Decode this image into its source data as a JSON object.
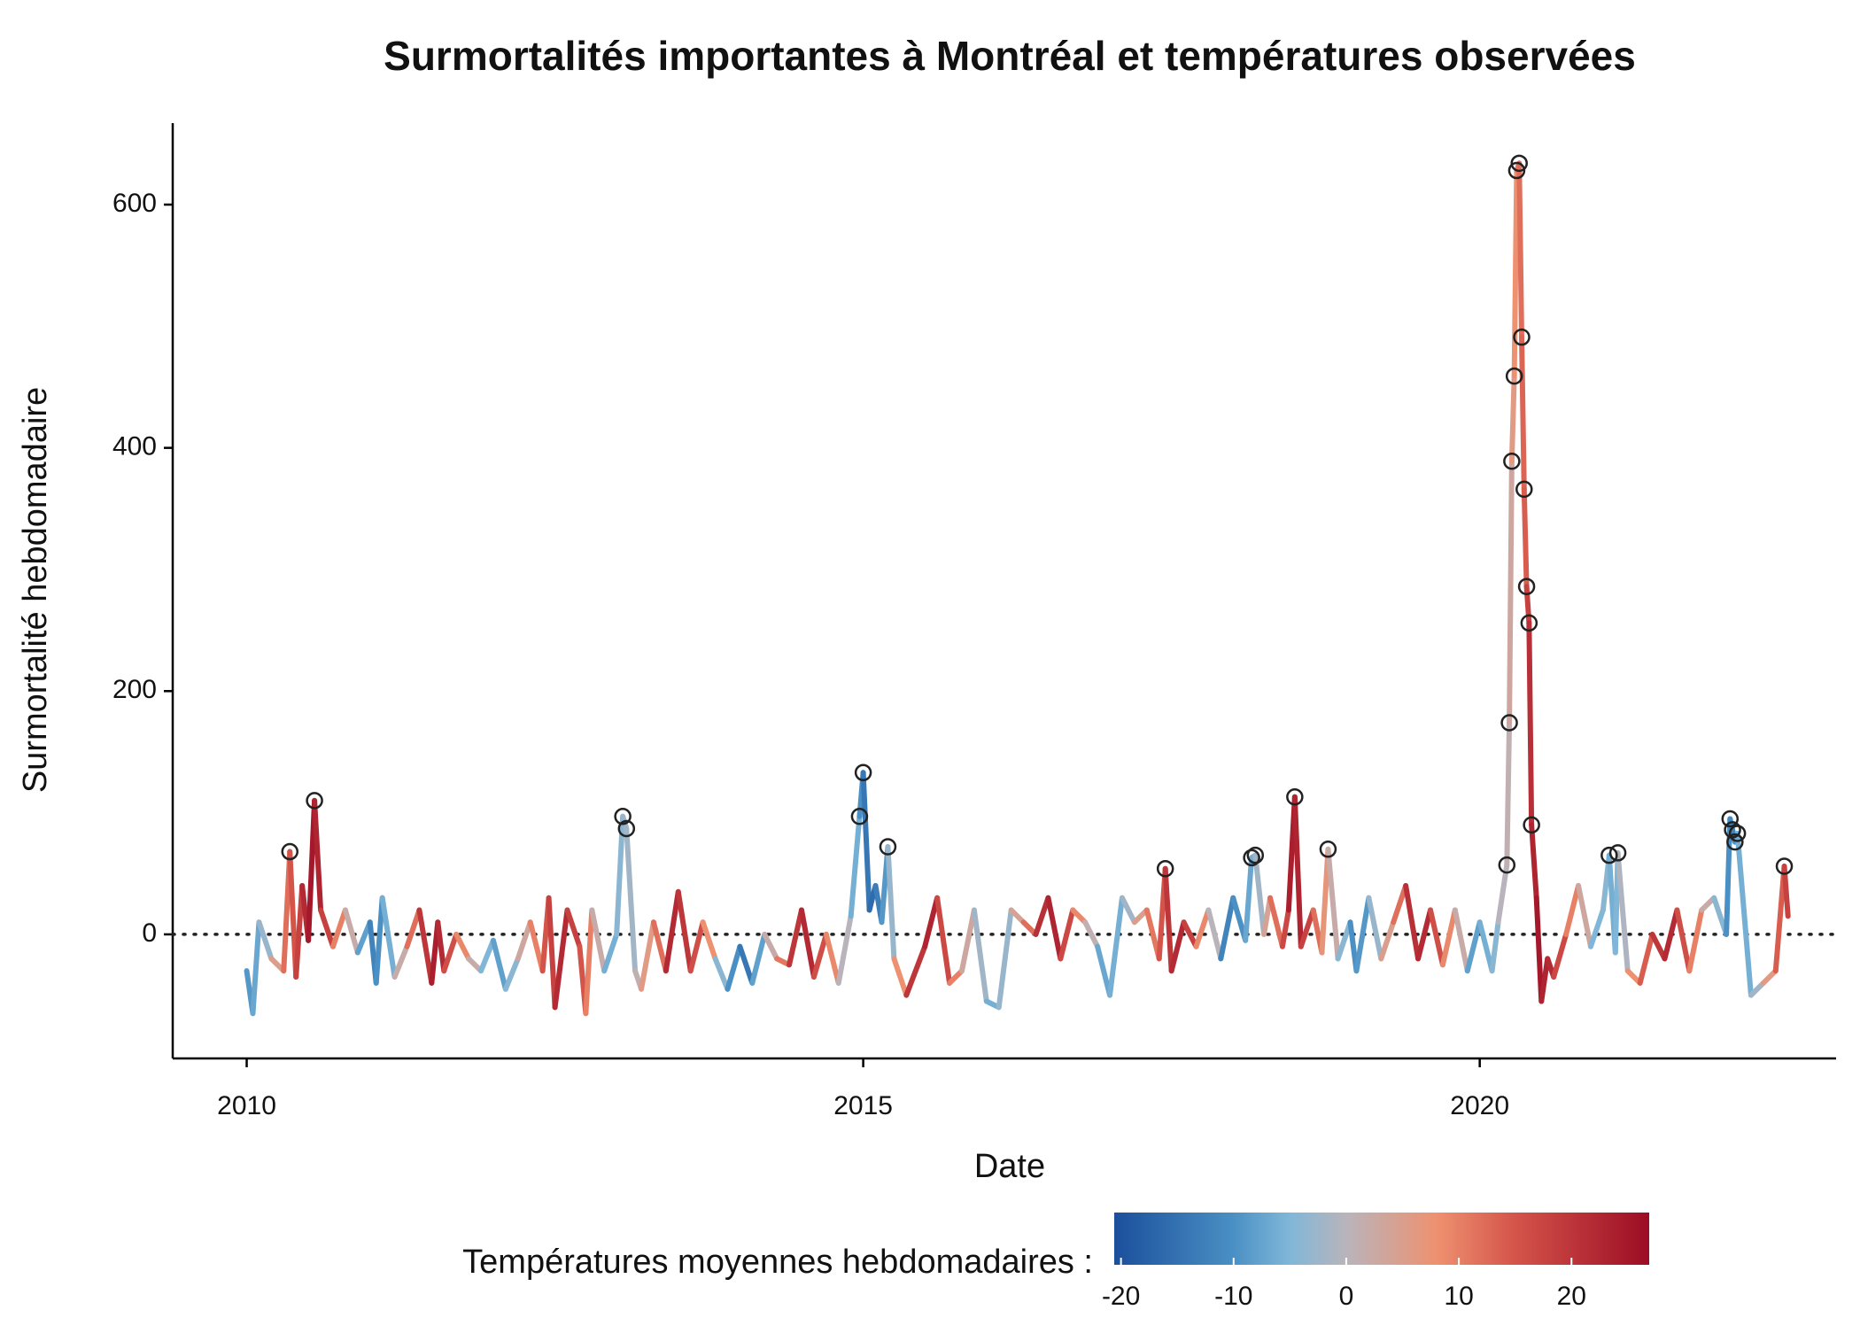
{
  "chart_data": {
    "type": "line",
    "title": "Surmortalités importantes à Montréal et températures observées",
    "x_label": "Date",
    "y_label": "Surmortalité hebdomadaire",
    "xlim": [
      2009.4,
      2022.89
    ],
    "xticks": [
      2010,
      2015,
      2020
    ],
    "ylim": [
      -102,
      667
    ],
    "yticks": [
      0,
      200,
      400,
      600
    ],
    "reference_line": 0,
    "series": [
      {
        "x": [
          2010.0,
          2010.05,
          2010.1,
          2010.2,
          2010.3,
          2010.35,
          2010.4,
          2010.45,
          2010.5,
          2010.55,
          2010.6,
          2010.7,
          2010.8,
          2010.9,
          2011.0,
          2011.05,
          2011.1,
          2011.2,
          2011.3,
          2011.4,
          2011.5,
          2011.55,
          2011.6,
          2011.7,
          2011.8,
          2011.9,
          2012.0,
          2012.1,
          2012.2,
          2012.3,
          2012.4,
          2012.45,
          2012.5,
          2012.6,
          2012.7,
          2012.75,
          2012.8,
          2012.9,
          2013.0,
          2013.05,
          2013.08,
          2013.15,
          2013.2,
          2013.3,
          2013.4,
          2013.5,
          2013.6,
          2013.7,
          2013.8,
          2013.9,
          2014.0,
          2014.1,
          2014.2,
          2014.3,
          2014.4,
          2014.5,
          2014.6,
          2014.7,
          2014.8,
          2014.9,
          2014.97,
          2015.0,
          2015.05,
          2015.1,
          2015.15,
          2015.2,
          2015.25,
          2015.35,
          2015.5,
          2015.6,
          2015.7,
          2015.8,
          2015.9,
          2016.0,
          2016.1,
          2016.2,
          2016.3,
          2016.4,
          2016.5,
          2016.6,
          2016.7,
          2016.8,
          2016.9,
          2017.0,
          2017.1,
          2017.2,
          2017.3,
          2017.4,
          2017.45,
          2017.5,
          2017.6,
          2017.7,
          2017.8,
          2017.9,
          2018.0,
          2018.1,
          2018.15,
          2018.18,
          2018.25,
          2018.3,
          2018.4,
          2018.45,
          2018.5,
          2018.55,
          2018.65,
          2018.72,
          2018.77,
          2018.85,
          2018.95,
          2019.0,
          2019.1,
          2019.2,
          2019.3,
          2019.4,
          2019.5,
          2019.6,
          2019.7,
          2019.8,
          2019.9,
          2020.0,
          2020.1,
          2020.15,
          2020.22,
          2020.24,
          2020.26,
          2020.28,
          2020.3,
          2020.32,
          2020.34,
          2020.36,
          2020.38,
          2020.4,
          2020.42,
          2020.46,
          2020.5,
          2020.55,
          2020.6,
          2020.7,
          2020.8,
          2020.9,
          2021.0,
          2021.05,
          2021.1,
          2021.12,
          2021.2,
          2021.3,
          2021.4,
          2021.5,
          2021.6,
          2021.7,
          2021.8,
          2021.9,
          2022.0,
          2022.03,
          2022.05,
          2022.07,
          2022.09,
          2022.2,
          2022.3,
          2022.4,
          2022.47,
          2022.5
        ],
        "values": [
          -30,
          -65,
          10,
          -20,
          -30,
          68,
          -35,
          40,
          -5,
          110,
          20,
          -10,
          20,
          -15,
          10,
          -40,
          30,
          -35,
          -10,
          20,
          -40,
          10,
          -30,
          0,
          -20,
          -30,
          -5,
          -45,
          -20,
          10,
          -30,
          30,
          -60,
          20,
          -10,
          -65,
          20,
          -30,
          0,
          97,
          87,
          -30,
          -45,
          10,
          -30,
          35,
          -30,
          10,
          -20,
          -45,
          -10,
          -40,
          0,
          -20,
          -25,
          20,
          -35,
          0,
          -40,
          15,
          97,
          133,
          20,
          40,
          10,
          72,
          -20,
          -50,
          -10,
          30,
          -40,
          -30,
          20,
          -55,
          -60,
          20,
          10,
          0,
          30,
          -20,
          20,
          10,
          -10,
          -50,
          30,
          10,
          20,
          -20,
          54,
          -30,
          10,
          -10,
          20,
          -20,
          30,
          -5,
          63,
          65,
          0,
          30,
          -10,
          20,
          113,
          -10,
          20,
          -15,
          70,
          -20,
          10,
          -30,
          30,
          -20,
          10,
          40,
          -20,
          20,
          -25,
          20,
          -30,
          10,
          -30,
          10,
          57,
          174,
          389,
          459,
          628,
          634,
          491,
          366,
          286,
          256,
          90,
          30,
          -55,
          -20,
          -35,
          0,
          40,
          -10,
          20,
          65,
          -15,
          67,
          -30,
          -40,
          0,
          -20,
          20,
          -30,
          20,
          30,
          0,
          95,
          86,
          76,
          83,
          -50,
          -40,
          -30,
          56,
          15
        ],
        "temperature": [
          -8,
          -9,
          -7,
          -3,
          5,
          12,
          15,
          18,
          22,
          25,
          23,
          18,
          10,
          2,
          -8,
          -12,
          -10,
          -6,
          2,
          12,
          20,
          24,
          22,
          16,
          9,
          2,
          -5,
          -8,
          -4,
          3,
          10,
          15,
          18,
          22,
          18,
          15,
          10,
          2,
          -6,
          -4,
          -3,
          -2,
          1,
          6,
          12,
          22,
          20,
          16,
          8,
          -4,
          -10,
          -14,
          -8,
          2,
          11,
          20,
          22,
          16,
          9,
          0,
          -6,
          -10,
          -14,
          -16,
          -13,
          -9,
          -3,
          8,
          20,
          23,
          17,
          10,
          3,
          -2,
          -6,
          -3,
          4,
          12,
          21,
          23,
          17,
          9,
          1,
          -7,
          -6,
          -2,
          5,
          11,
          15,
          20,
          22,
          18,
          9,
          0,
          -12,
          -10,
          -7,
          -6,
          -2,
          4,
          12,
          17,
          24,
          23,
          18,
          12,
          7,
          2,
          -4,
          -10,
          -9,
          -3,
          5,
          12,
          21,
          22,
          16,
          9,
          2,
          -8,
          -6,
          -4,
          0,
          1,
          3,
          6,
          8,
          10,
          12,
          13,
          14,
          18,
          21,
          23,
          25,
          23,
          22,
          17,
          10,
          3,
          -5,
          -4,
          -6,
          -5,
          -1,
          8,
          14,
          20,
          22,
          16,
          10,
          2,
          -4,
          -10,
          -11,
          -12,
          -10,
          -6,
          -2,
          6,
          14,
          18
        ]
      }
    ],
    "highlights": {
      "x": [
        2010.35,
        2010.55,
        2013.05,
        2013.08,
        2014.97,
        2015.0,
        2015.2,
        2017.45,
        2018.15,
        2018.18,
        2018.5,
        2018.77,
        2020.22,
        2020.24,
        2020.26,
        2020.28,
        2020.3,
        2020.32,
        2020.34,
        2020.36,
        2020.38,
        2020.4,
        2020.42,
        2021.05,
        2021.12,
        2022.03,
        2022.05,
        2022.07,
        2022.09,
        2022.47
      ],
      "values": [
        68,
        110,
        97,
        87,
        97,
        133,
        72,
        54,
        63,
        65,
        113,
        70,
        57,
        174,
        389,
        459,
        628,
        634,
        491,
        366,
        286,
        256,
        90,
        65,
        67,
        95,
        86,
        76,
        83,
        56
      ]
    },
    "colorbar": {
      "label": "Températures moyennes hebdomadaires :",
      "lim": [
        -20.6,
        26.9
      ],
      "ticks": [
        -20,
        -10,
        0,
        10,
        20
      ],
      "colorscale": [
        [
          -20.6,
          "#1b4f9c"
        ],
        [
          -10,
          "#4a90c4"
        ],
        [
          -5,
          "#80b7d8"
        ],
        [
          0,
          "#b9b4bb"
        ],
        [
          8,
          "#ee9170"
        ],
        [
          15,
          "#d4544a"
        ],
        [
          26.9,
          "#9c0c24"
        ]
      ]
    }
  }
}
